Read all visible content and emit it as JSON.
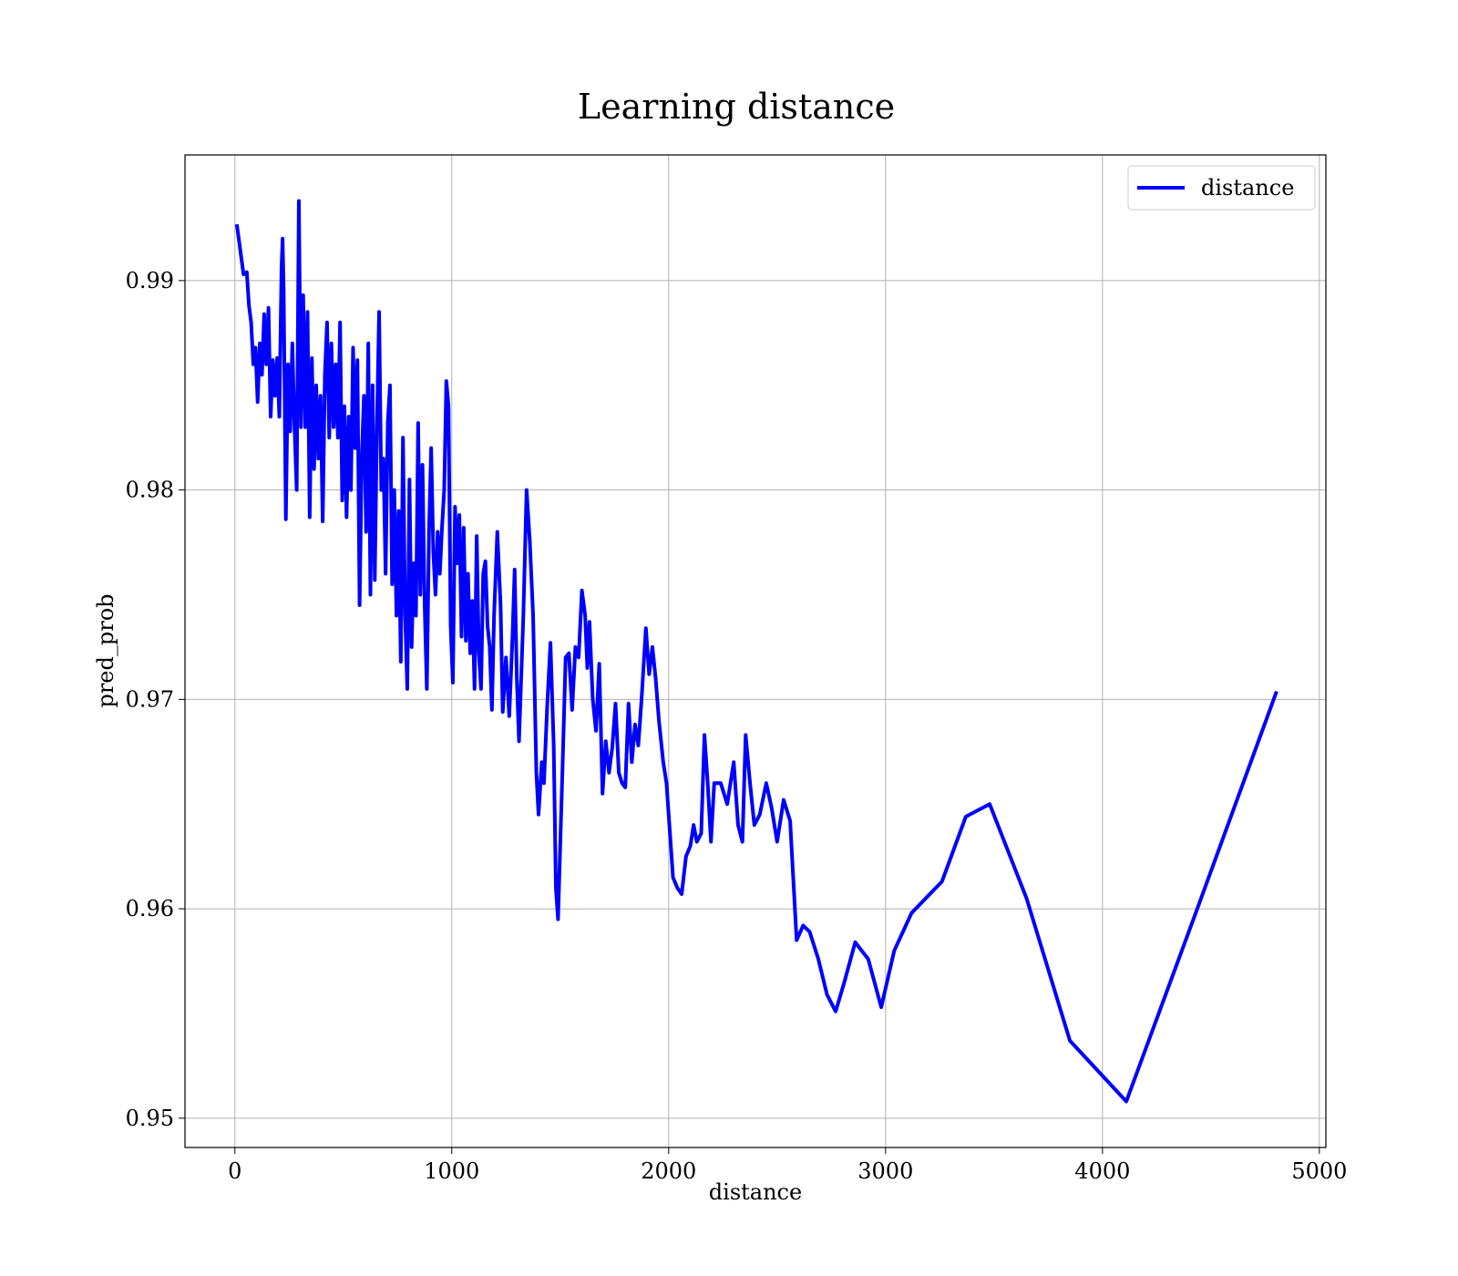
{
  "chart_data": {
    "type": "line",
    "title": "Learning distance",
    "xlabel": "distance",
    "ylabel": "pred_prob",
    "x": [
      10,
      40,
      55,
      65,
      75,
      85,
      95,
      105,
      115,
      125,
      135,
      145,
      155,
      165,
      175,
      185,
      195,
      205,
      215,
      220,
      225,
      235,
      245,
      255,
      265,
      275,
      285,
      295,
      305,
      315,
      325,
      335,
      345,
      355,
      365,
      375,
      385,
      395,
      405,
      415,
      425,
      435,
      445,
      455,
      465,
      475,
      485,
      495,
      505,
      515,
      525,
      535,
      545,
      555,
      565,
      575,
      585,
      595,
      605,
      615,
      625,
      635,
      645,
      655,
      665,
      675,
      685,
      695,
      705,
      715,
      725,
      735,
      745,
      755,
      765,
      775,
      785,
      795,
      805,
      815,
      825,
      835,
      845,
      855,
      865,
      875,
      885,
      895,
      905,
      915,
      925,
      935,
      945,
      955,
      965,
      975,
      985,
      995,
      1005,
      1015,
      1025,
      1035,
      1045,
      1055,
      1065,
      1075,
      1085,
      1095,
      1105,
      1115,
      1125,
      1135,
      1145,
      1155,
      1165,
      1175,
      1185,
      1195,
      1210,
      1225,
      1235,
      1250,
      1265,
      1280,
      1290,
      1300,
      1310,
      1330,
      1345,
      1360,
      1375,
      1390,
      1400,
      1415,
      1425,
      1440,
      1455,
      1470,
      1480,
      1490,
      1500,
      1510,
      1525,
      1540,
      1555,
      1570,
      1585,
      1600,
      1615,
      1625,
      1635,
      1650,
      1665,
      1680,
      1695,
      1710,
      1725,
      1740,
      1755,
      1770,
      1785,
      1800,
      1815,
      1830,
      1845,
      1860,
      1875,
      1895,
      1910,
      1925,
      1940,
      1955,
      1975,
      1990,
      2020,
      2040,
      2060,
      2080,
      2100,
      2115,
      2130,
      2150,
      2165,
      2180,
      2195,
      2210,
      2240,
      2270,
      2300,
      2320,
      2340,
      2355,
      2375,
      2395,
      2420,
      2450,
      2475,
      2500,
      2530,
      2560,
      2590,
      2620,
      2650,
      2690,
      2730,
      2770,
      2810,
      2860,
      2920,
      2980,
      3040,
      3120,
      3260,
      3370,
      3480,
      3650,
      3850,
      4110,
      4430,
      4800
    ],
    "series": [
      {
        "name": "distance",
        "color": "#0000ff",
        "values": [
          0.9926,
          0.9903,
          0.9904,
          0.9888,
          0.988,
          0.986,
          0.9868,
          0.9842,
          0.987,
          0.9855,
          0.9884,
          0.986,
          0.9887,
          0.9835,
          0.9862,
          0.9845,
          0.9863,
          0.9835,
          0.9905,
          0.992,
          0.9895,
          0.9786,
          0.986,
          0.9828,
          0.987,
          0.983,
          0.98,
          0.9938,
          0.983,
          0.9893,
          0.983,
          0.9885,
          0.9787,
          0.9863,
          0.981,
          0.985,
          0.9815,
          0.9845,
          0.9785,
          0.9855,
          0.988,
          0.9825,
          0.987,
          0.983,
          0.986,
          0.9825,
          0.988,
          0.9795,
          0.984,
          0.9787,
          0.9835,
          0.98,
          0.9868,
          0.982,
          0.9862,
          0.9745,
          0.9815,
          0.9845,
          0.978,
          0.987,
          0.975,
          0.985,
          0.9757,
          0.983,
          0.9885,
          0.98,
          0.9815,
          0.976,
          0.9832,
          0.985,
          0.9755,
          0.98,
          0.974,
          0.979,
          0.9718,
          0.9825,
          0.974,
          0.9705,
          0.9805,
          0.9725,
          0.9765,
          0.974,
          0.9832,
          0.975,
          0.9812,
          0.9745,
          0.9705,
          0.978,
          0.982,
          0.977,
          0.975,
          0.978,
          0.976,
          0.9782,
          0.98,
          0.9852,
          0.984,
          0.9735,
          0.9708,
          0.9792,
          0.9765,
          0.9788,
          0.973,
          0.9782,
          0.9728,
          0.976,
          0.9722,
          0.9747,
          0.9705,
          0.9778,
          0.9722,
          0.9705,
          0.976,
          0.9766,
          0.9735,
          0.9725,
          0.9695,
          0.974,
          0.978,
          0.9745,
          0.9694,
          0.972,
          0.9692,
          0.973,
          0.9762,
          0.971,
          0.968,
          0.974,
          0.98,
          0.9775,
          0.974,
          0.9665,
          0.9645,
          0.967,
          0.966,
          0.9697,
          0.9727,
          0.9678,
          0.961,
          0.9595,
          0.963,
          0.9665,
          0.972,
          0.9722,
          0.9695,
          0.9725,
          0.972,
          0.9752,
          0.974,
          0.9715,
          0.9737,
          0.97,
          0.9685,
          0.9717,
          0.9655,
          0.968,
          0.9665,
          0.9677,
          0.9698,
          0.9665,
          0.966,
          0.9658,
          0.9698,
          0.967,
          0.9688,
          0.9678,
          0.97,
          0.9734,
          0.9712,
          0.9725,
          0.971,
          0.969,
          0.967,
          0.966,
          0.9615,
          0.961,
          0.9607,
          0.9625,
          0.963,
          0.964,
          0.9632,
          0.9636,
          0.9683,
          0.966,
          0.9632,
          0.966,
          0.966,
          0.965,
          0.967,
          0.964,
          0.9632,
          0.9683,
          0.966,
          0.964,
          0.9645,
          0.966,
          0.9648,
          0.9632,
          0.9652,
          0.9642,
          0.9585,
          0.9592,
          0.9589,
          0.9576,
          0.9559,
          0.9551,
          0.9565,
          0.9584,
          0.9576,
          0.9553,
          0.958,
          0.9598,
          0.9613,
          0.9644,
          0.965,
          0.9605,
          0.9537,
          0.9508,
          0.9598,
          0.9703
        ]
      }
    ],
    "xlim": [
      -230,
      5030
    ],
    "ylim": [
      0.9486,
      0.996
    ],
    "xticks": [
      0,
      1000,
      2000,
      3000,
      4000,
      5000
    ],
    "yticks": [
      0.95,
      0.96,
      0.97,
      0.98,
      0.99
    ],
    "grid": true,
    "legend": "upper right"
  }
}
